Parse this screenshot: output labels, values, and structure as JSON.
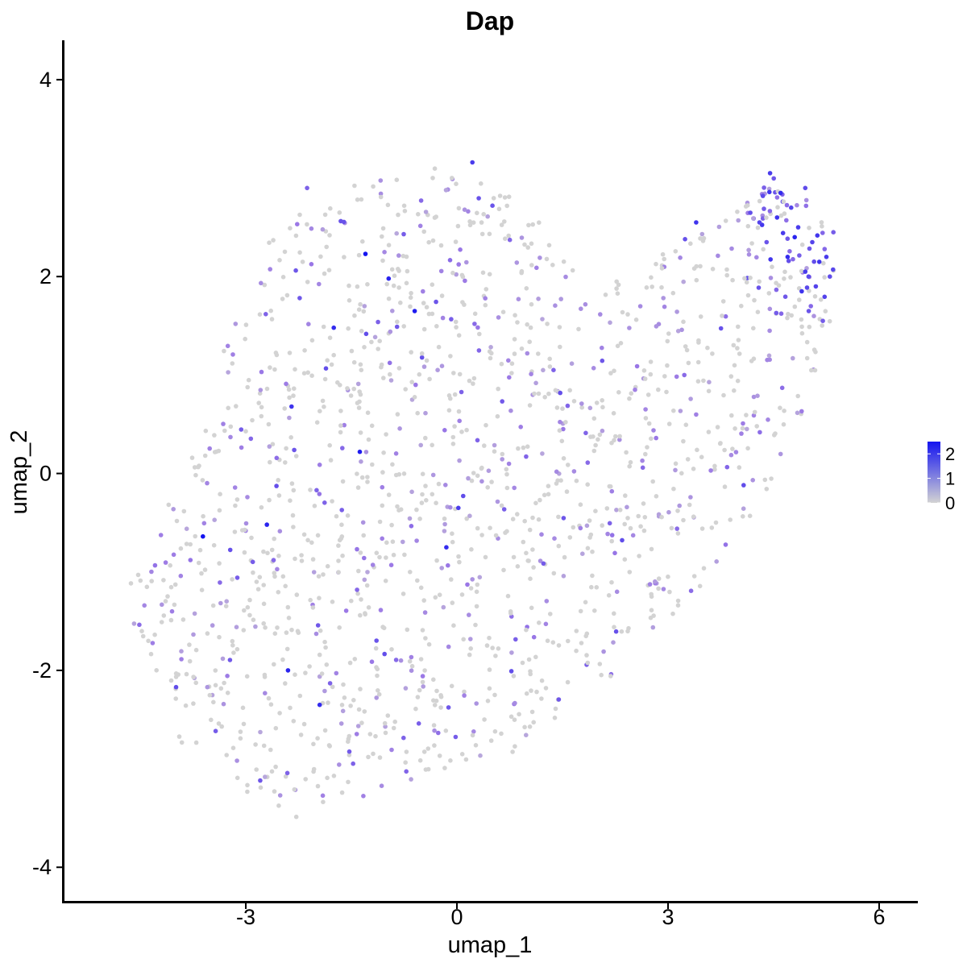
{
  "chart_data": {
    "type": "scatter",
    "title": "Dap",
    "xlabel": "umap_1",
    "ylabel": "umap_2",
    "xlim": [
      -5.6,
      6.55
    ],
    "ylim": [
      -4.35,
      4.4
    ],
    "xticks": [
      -3,
      0,
      3,
      6
    ],
    "yticks": [
      -4,
      -2,
      0,
      2,
      4
    ],
    "grid": false,
    "legend_placement": "right",
    "color_scale": {
      "low_color": "#d3d3d3",
      "high_color": "#1414f0",
      "min": 0,
      "max": 2.5,
      "ticks": [
        0,
        1,
        2
      ]
    },
    "point_count_estimate": 1500,
    "hull": [
      [
        -4.8,
        -1.2
      ],
      [
        -4.2,
        -2.2
      ],
      [
        -3.9,
        -2.8
      ],
      [
        -3.1,
        -3.2
      ],
      [
        -2.3,
        -3.5
      ],
      [
        -1.4,
        -3.3
      ],
      [
        -0.3,
        -3.05
      ],
      [
        0.7,
        -2.9
      ],
      [
        1.4,
        -2.5
      ],
      [
        2.4,
        -1.95
      ],
      [
        3.0,
        -1.5
      ],
      [
        3.4,
        -1.2
      ],
      [
        3.8,
        -0.8
      ],
      [
        4.3,
        -0.3
      ],
      [
        4.8,
        0.3
      ],
      [
        5.1,
        1.0
      ],
      [
        5.3,
        1.5
      ],
      [
        5.4,
        2.4
      ],
      [
        4.9,
        2.85
      ],
      [
        4.4,
        3.05
      ],
      [
        3.8,
        2.6
      ],
      [
        3.1,
        2.35
      ],
      [
        2.4,
        2.0
      ],
      [
        1.8,
        1.85
      ],
      [
        1.3,
        2.6
      ],
      [
        0.6,
        2.95
      ],
      [
        -0.2,
        3.15
      ],
      [
        -1.1,
        3.0
      ],
      [
        -2.1,
        2.95
      ],
      [
        -2.9,
        2.1
      ],
      [
        -3.3,
        1.3
      ],
      [
        -3.7,
        0.25
      ],
      [
        -4.3,
        -0.6
      ],
      [
        -4.9,
        -1.3
      ]
    ],
    "hotspot_points": [
      {
        "x": 4.45,
        "y": 3.05,
        "expr": 2.0
      },
      {
        "x": 4.6,
        "y": 2.85,
        "expr": 2.2
      },
      {
        "x": 4.75,
        "y": 2.7,
        "expr": 1.9
      },
      {
        "x": 4.95,
        "y": 2.9,
        "expr": 1.8
      },
      {
        "x": 4.55,
        "y": 2.6,
        "expr": 2.1
      },
      {
        "x": 4.85,
        "y": 2.5,
        "expr": 2.0
      },
      {
        "x": 5.05,
        "y": 2.35,
        "expr": 1.9
      },
      {
        "x": 5.25,
        "y": 2.2,
        "expr": 2.0
      },
      {
        "x": 5.3,
        "y": 2.0,
        "expr": 1.8
      },
      {
        "x": 5.1,
        "y": 1.9,
        "expr": 1.9
      },
      {
        "x": 4.9,
        "y": 1.85,
        "expr": 2.1
      },
      {
        "x": 5.0,
        "y": 1.65,
        "expr": 1.7
      },
      {
        "x": 5.2,
        "y": 1.55,
        "expr": 1.6
      },
      {
        "x": 4.7,
        "y": 2.2,
        "expr": 2.2
      },
      {
        "x": 4.95,
        "y": 2.05,
        "expr": 2.0
      },
      {
        "x": 4.4,
        "y": 2.35,
        "expr": 1.7
      },
      {
        "x": 4.3,
        "y": 2.55,
        "expr": 1.9
      },
      {
        "x": 5.35,
        "y": 2.45,
        "expr": 1.6
      },
      {
        "x": 4.8,
        "y": 2.4,
        "expr": 2.3
      },
      {
        "x": 5.15,
        "y": 2.15,
        "expr": 2.1
      }
    ],
    "high_points": [
      {
        "x": -1.3,
        "y": 2.23,
        "expr": 2.5
      },
      {
        "x": -0.6,
        "y": 1.65,
        "expr": 2.4
      },
      {
        "x": -0.97,
        "y": 1.98,
        "expr": 2.3
      },
      {
        "x": -1.75,
        "y": 1.48,
        "expr": 2.2
      },
      {
        "x": -3.61,
        "y": -0.64,
        "expr": 2.5
      },
      {
        "x": -2.7,
        "y": -0.52,
        "expr": 2.3
      },
      {
        "x": -1.38,
        "y": 0.22,
        "expr": 2.4
      },
      {
        "x": 0.22,
        "y": 3.16,
        "expr": 2.0
      },
      {
        "x": 3.4,
        "y": 2.55,
        "expr": 2.1
      },
      {
        "x": -0.15,
        "y": -0.75,
        "expr": 2.2
      },
      {
        "x": 0.02,
        "y": -0.35,
        "expr": 2.0
      },
      {
        "x": -2.4,
        "y": -2.0,
        "expr": 2.3
      },
      {
        "x": -1.95,
        "y": -2.35,
        "expr": 2.2
      },
      {
        "x": -2.35,
        "y": 0.68,
        "expr": 2.1
      }
    ]
  }
}
